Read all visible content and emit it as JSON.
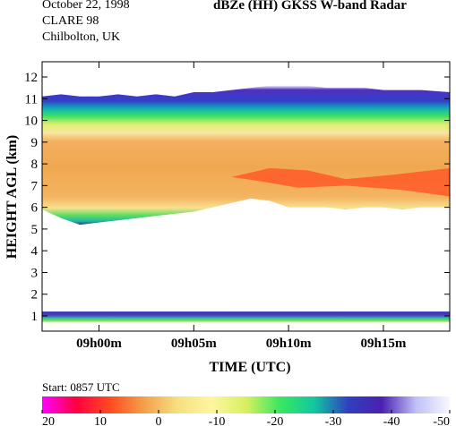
{
  "header": {
    "date": "October 22, 1998",
    "campaign": "CLARE 98",
    "location": "Chilbolton, UK",
    "title": "dBZe (HH)   GKSS  W-band Radar"
  },
  "start_label": "Start: 0857 UTC",
  "chart_data": {
    "type": "heatmap",
    "title": "dBZe (HH)   GKSS  W-band Radar",
    "xlabel": "TIME (UTC)",
    "ylabel": "HEIGHT AGL (km)",
    "x_tick_labels": [
      "09h00m",
      "09h05m",
      "09h10m",
      "09h15m"
    ],
    "x_ticks_minutes": [
      0,
      5,
      10,
      15
    ],
    "xlim_minutes_after_0900": [
      -3,
      18.5
    ],
    "y_ticks": [
      1,
      2,
      3,
      4,
      5,
      6,
      7,
      8,
      9,
      10,
      11,
      12
    ],
    "ylim": [
      0.3,
      12.7
    ],
    "colorbar": {
      "ticks": [
        20,
        10,
        0,
        -10,
        -20,
        -30,
        -40,
        -50
      ],
      "range": [
        20,
        -50
      ],
      "colors": [
        "#ff00ff",
        "#ff0040",
        "#ff4a20",
        "#f4a04a",
        "#f6e080",
        "#fff6a0",
        "#d8f060",
        "#38e860",
        "#10c8a0",
        "#3040c0",
        "#4a20b0",
        "#c0c0f8",
        "#f8f8ff"
      ]
    },
    "upper_cloud": {
      "time_minutes": [
        -3,
        -2,
        -1,
        0,
        1,
        2,
        3,
        4,
        5,
        6,
        7,
        8,
        9,
        10,
        11,
        12,
        13,
        14,
        15,
        16,
        17,
        18.5
      ],
      "top_km": [
        11.1,
        11.2,
        11.1,
        11.1,
        11.2,
        11.1,
        11.2,
        11.1,
        11.3,
        11.3,
        11.4,
        11.5,
        11.6,
        11.6,
        11.6,
        11.5,
        11.5,
        11.5,
        11.4,
        11.4,
        11.4,
        11.3
      ],
      "base_km": [
        5.9,
        5.5,
        5.2,
        5.3,
        5.4,
        5.5,
        5.6,
        5.7,
        5.8,
        6.0,
        6.2,
        6.4,
        6.3,
        6.0,
        6.0,
        6.0,
        5.9,
        6.0,
        6.0,
        5.9,
        6.0,
        6.0
      ],
      "core_dbz_range": [
        0,
        5
      ],
      "max_dbz_region_km": [
        6.8,
        7.8
      ]
    },
    "lower_cloud": {
      "top_km": 1.2,
      "base_km": 0.7,
      "core_dbz_range": [
        -20,
        -40
      ]
    }
  }
}
